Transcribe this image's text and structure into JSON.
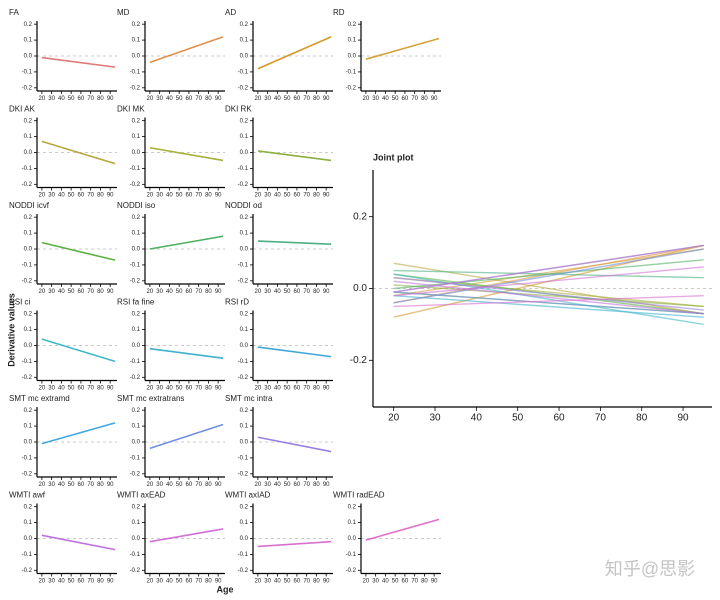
{
  "y_label": "Derivative values",
  "x_label": "Age",
  "watermark": "知乎@思影",
  "chart_data": [
    {
      "type": "line",
      "title": "FA",
      "x": [
        20,
        95
      ],
      "values": [
        -0.01,
        -0.07
      ],
      "color": "#e07878",
      "xlim": [
        15,
        97
      ],
      "ylim": [
        -0.22,
        0.22
      ],
      "xticks": [
        20,
        30,
        40,
        50,
        60,
        70,
        80,
        90
      ],
      "yticks": [
        -0.2,
        -0.1,
        {
          "value": 0,
          "label": "0.0"
        },
        0.1,
        0.2
      ],
      "zero_line": true
    },
    {
      "type": "line",
      "title": "MD",
      "x": [
        20,
        95
      ],
      "values": [
        -0.04,
        0.12
      ],
      "color": "#e0904a",
      "xlim": [
        15,
        97
      ],
      "ylim": [
        -0.22,
        0.22
      ],
      "xticks": [
        20,
        30,
        40,
        50,
        60,
        70,
        80,
        90
      ],
      "yticks": [
        -0.2,
        -0.1,
        {
          "value": 0,
          "label": "0.0"
        },
        0.1,
        0.2
      ],
      "zero_line": true
    },
    {
      "type": "line",
      "title": "AD",
      "x": [
        20,
        95
      ],
      "values": [
        -0.08,
        0.12
      ],
      "color": "#d6982a",
      "xlim": [
        15,
        97
      ],
      "ylim": [
        -0.22,
        0.22
      ],
      "xticks": [
        20,
        30,
        40,
        50,
        60,
        70,
        80,
        90
      ],
      "yticks": [
        -0.2,
        -0.1,
        {
          "value": 0,
          "label": "0.0"
        },
        0.1,
        0.2
      ],
      "zero_line": true
    },
    {
      "type": "line",
      "title": "RD",
      "x": [
        20,
        95
      ],
      "values": [
        -0.02,
        0.11
      ],
      "color": "#d4a23a",
      "xlim": [
        15,
        97
      ],
      "ylim": [
        -0.22,
        0.22
      ],
      "xticks": [
        20,
        30,
        40,
        50,
        60,
        70,
        80,
        90
      ],
      "yticks": [
        -0.2,
        -0.1,
        {
          "value": 0,
          "label": "0.0"
        },
        0.1,
        0.2
      ],
      "zero_line": true
    },
    {
      "type": "line",
      "title": "DKI AK",
      "x": [
        20,
        95
      ],
      "values": [
        0.07,
        -0.07
      ],
      "color": "#b8a640",
      "xlim": [
        15,
        97
      ],
      "ylim": [
        -0.22,
        0.22
      ],
      "xticks": [
        20,
        30,
        40,
        50,
        60,
        70,
        80,
        90
      ],
      "yticks": [
        -0.2,
        -0.1,
        {
          "value": 0,
          "label": "0.0"
        },
        0.1,
        0.2
      ],
      "zero_line": true
    },
    {
      "type": "line",
      "title": "DKI MK",
      "x": [
        20,
        95
      ],
      "values": [
        0.03,
        -0.05
      ],
      "color": "#a6b03a",
      "xlim": [
        15,
        97
      ],
      "ylim": [
        -0.22,
        0.22
      ],
      "xticks": [
        20,
        30,
        40,
        50,
        60,
        70,
        80,
        90
      ],
      "yticks": [
        -0.2,
        -0.1,
        {
          "value": 0,
          "label": "0.0"
        },
        0.1,
        0.2
      ],
      "zero_line": true
    },
    {
      "type": "line",
      "title": "DKI RK",
      "x": [
        20,
        95
      ],
      "values": [
        0.01,
        -0.05
      ],
      "color": "#8cb040",
      "xlim": [
        15,
        97
      ],
      "ylim": [
        -0.22,
        0.22
      ],
      "xticks": [
        20,
        30,
        40,
        50,
        60,
        70,
        80,
        90
      ],
      "yticks": [
        -0.2,
        -0.1,
        {
          "value": 0,
          "label": "0.0"
        },
        0.1,
        0.2
      ],
      "zero_line": true
    },
    {
      "type": "line",
      "title": "NODDI icvf",
      "x": [
        20,
        95
      ],
      "values": [
        0.04,
        -0.07
      ],
      "color": "#5cb040",
      "xlim": [
        15,
        97
      ],
      "ylim": [
        -0.22,
        0.22
      ],
      "xticks": [
        20,
        30,
        40,
        50,
        60,
        70,
        80,
        90
      ],
      "yticks": [
        -0.2,
        -0.1,
        {
          "value": 0,
          "label": "0.0"
        },
        0.1,
        0.2
      ],
      "zero_line": true
    },
    {
      "type": "line",
      "title": "NODDI iso",
      "x": [
        20,
        95
      ],
      "values": [
        0.0,
        0.08
      ],
      "color": "#4cb060",
      "xlim": [
        15,
        97
      ],
      "ylim": [
        -0.22,
        0.22
      ],
      "xticks": [
        20,
        30,
        40,
        50,
        60,
        70,
        80,
        90
      ],
      "yticks": [
        -0.2,
        -0.1,
        {
          "value": 0,
          "label": "0.0"
        },
        0.1,
        0.2
      ],
      "zero_line": true
    },
    {
      "type": "line",
      "title": "NODDI od",
      "x": [
        20,
        95
      ],
      "values": [
        0.05,
        0.03
      ],
      "color": "#4cb082",
      "xlim": [
        15,
        97
      ],
      "ylim": [
        -0.22,
        0.22
      ],
      "xticks": [
        20,
        30,
        40,
        50,
        60,
        70,
        80,
        90
      ],
      "yticks": [
        -0.2,
        -0.1,
        {
          "value": 0,
          "label": "0.0"
        },
        0.1,
        0.2
      ],
      "zero_line": true
    },
    {
      "type": "line",
      "title": "RSI ci",
      "x": [
        20,
        95
      ],
      "values": [
        0.04,
        -0.1
      ],
      "color": "#40b8c8",
      "xlim": [
        15,
        97
      ],
      "ylim": [
        -0.22,
        0.22
      ],
      "xticks": [
        20,
        30,
        40,
        50,
        60,
        70,
        80,
        90
      ],
      "yticks": [
        -0.2,
        -0.1,
        {
          "value": 0,
          "label": "0.0"
        },
        0.1,
        0.2
      ],
      "zero_line": true
    },
    {
      "type": "line",
      "title": "RSI fa fine",
      "x": [
        20,
        95
      ],
      "values": [
        -0.02,
        -0.08
      ],
      "color": "#40b0d0",
      "xlim": [
        15,
        97
      ],
      "ylim": [
        -0.22,
        0.22
      ],
      "xticks": [
        20,
        30,
        40,
        50,
        60,
        70,
        80,
        90
      ],
      "yticks": [
        -0.2,
        -0.1,
        {
          "value": 0,
          "label": "0.0"
        },
        0.1,
        0.2
      ],
      "zero_line": true
    },
    {
      "type": "line",
      "title": "RSI rD",
      "x": [
        20,
        95
      ],
      "values": [
        -0.01,
        -0.07
      ],
      "color": "#40a8d8",
      "xlim": [
        15,
        97
      ],
      "ylim": [
        -0.22,
        0.22
      ],
      "xticks": [
        20,
        30,
        40,
        50,
        60,
        70,
        80,
        90
      ],
      "yticks": [
        -0.2,
        -0.1,
        {
          "value": 0,
          "label": "0.0"
        },
        0.1,
        0.2
      ],
      "zero_line": true
    },
    {
      "type": "line",
      "title": "SMT mc extramd",
      "x": [
        20,
        95
      ],
      "values": [
        -0.01,
        0.12
      ],
      "color": "#40a8e0",
      "xlim": [
        15,
        97
      ],
      "ylim": [
        -0.22,
        0.22
      ],
      "xticks": [
        20,
        30,
        40,
        50,
        60,
        70,
        80,
        90
      ],
      "yticks": [
        -0.2,
        -0.1,
        {
          "value": 0,
          "label": "0.0"
        },
        0.1,
        0.2
      ],
      "zero_line": true
    },
    {
      "type": "line",
      "title": "SMT mc extratrans",
      "x": [
        20,
        95
      ],
      "values": [
        -0.04,
        0.11
      ],
      "color": "#7090e0",
      "xlim": [
        15,
        97
      ],
      "ylim": [
        -0.22,
        0.22
      ],
      "xticks": [
        20,
        30,
        40,
        50,
        60,
        70,
        80,
        90
      ],
      "yticks": [
        -0.2,
        -0.1,
        {
          "value": 0,
          "label": "0.0"
        },
        0.1,
        0.2
      ],
      "zero_line": true
    },
    {
      "type": "line",
      "title": "SMT mc intra",
      "x": [
        20,
        95
      ],
      "values": [
        0.03,
        -0.06
      ],
      "color": "#9a80e0",
      "xlim": [
        15,
        97
      ],
      "ylim": [
        -0.22,
        0.22
      ],
      "xticks": [
        20,
        30,
        40,
        50,
        60,
        70,
        80,
        90
      ],
      "yticks": [
        -0.2,
        -0.1,
        {
          "value": 0,
          "label": "0.0"
        },
        0.1,
        0.2
      ],
      "zero_line": true
    },
    {
      "type": "line",
      "title": "WMTI awf",
      "x": [
        20,
        95
      ],
      "values": [
        0.02,
        -0.07
      ],
      "color": "#c070e0",
      "xlim": [
        15,
        97
      ],
      "ylim": [
        -0.22,
        0.22
      ],
      "xticks": [
        20,
        30,
        40,
        50,
        60,
        70,
        80,
        90
      ],
      "yticks": [
        -0.2,
        -0.1,
        {
          "value": 0,
          "label": "0.0"
        },
        0.1,
        0.2
      ],
      "zero_line": true
    },
    {
      "type": "line",
      "title": "WMTI axEAD",
      "x": [
        20,
        95
      ],
      "values": [
        -0.02,
        0.06
      ],
      "color": "#d070d8",
      "xlim": [
        15,
        97
      ],
      "ylim": [
        -0.22,
        0.22
      ],
      "xticks": [
        20,
        30,
        40,
        50,
        60,
        70,
        80,
        90
      ],
      "yticks": [
        -0.2,
        -0.1,
        {
          "value": 0,
          "label": "0.0"
        },
        0.1,
        0.2
      ],
      "zero_line": true
    },
    {
      "type": "line",
      "title": "WMTI axIAD",
      "x": [
        20,
        95
      ],
      "values": [
        -0.05,
        -0.02
      ],
      "color": "#d870d0",
      "xlim": [
        15,
        97
      ],
      "ylim": [
        -0.22,
        0.22
      ],
      "xticks": [
        20,
        30,
        40,
        50,
        60,
        70,
        80,
        90
      ],
      "yticks": [
        -0.2,
        -0.1,
        {
          "value": 0,
          "label": "0.0"
        },
        0.1,
        0.2
      ],
      "zero_line": true
    },
    {
      "type": "line",
      "title": "WMTI radEAD",
      "x": [
        20,
        95
      ],
      "values": [
        -0.01,
        0.12
      ],
      "color": "#e070c8",
      "xlim": [
        15,
        97
      ],
      "ylim": [
        -0.22,
        0.22
      ],
      "xticks": [
        20,
        30,
        40,
        50,
        60,
        70,
        80,
        90
      ],
      "yticks": [
        -0.2,
        -0.1,
        {
          "value": 0,
          "label": "0.0"
        },
        0.1,
        0.2
      ],
      "zero_line": true
    },
    {
      "type": "overlay",
      "title": "Joint plot",
      "xlim": [
        15,
        97
      ],
      "ylim": [
        -0.33,
        0.33
      ],
      "xticks": [
        20,
        30,
        40,
        50,
        60,
        70,
        80,
        90
      ],
      "yticks": [
        -0.2,
        {
          "value": 0,
          "label": "0.0"
        },
        0.2
      ],
      "zero_line": true
    }
  ]
}
